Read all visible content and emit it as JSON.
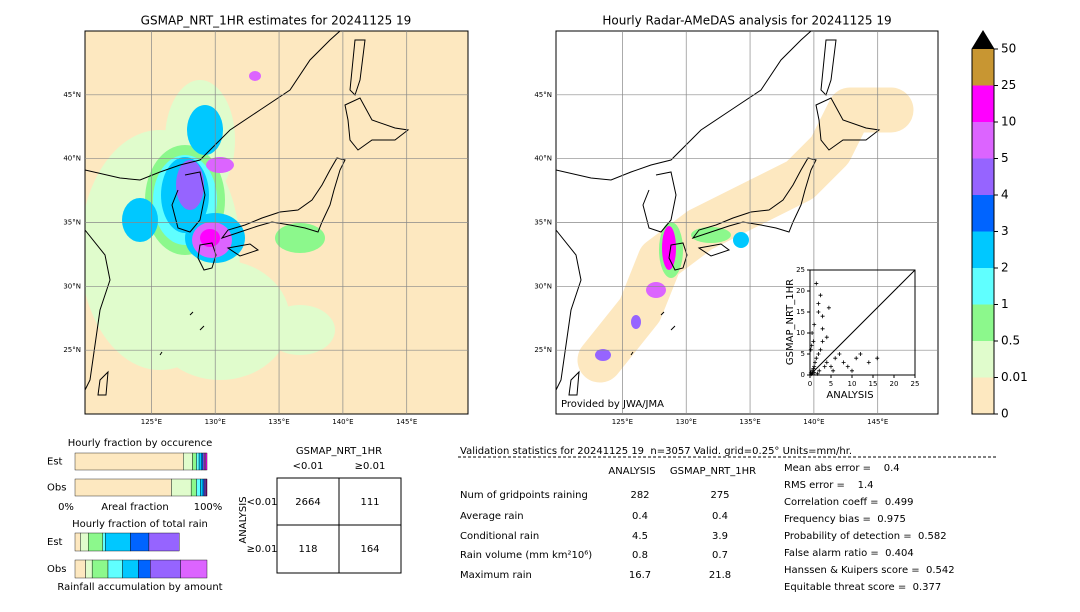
{
  "maps": [
    {
      "title": "GSMAP_NRT_1HR estimates for 20241125 19",
      "lonlim": [
        119.8,
        149.8
      ],
      "latlim": [
        20,
        50
      ],
      "lon_ticks": [
        {
          "value": 125,
          "label": "125°E"
        },
        {
          "value": 130,
          "label": "130°E"
        },
        {
          "value": 135,
          "label": "135°E"
        },
        {
          "value": 140,
          "label": "140°E"
        },
        {
          "value": 145,
          "label": "145°E"
        }
      ],
      "lat_ticks": [
        {
          "value": 25,
          "label": "25°N"
        },
        {
          "value": 30,
          "label": "30°N"
        },
        {
          "value": 35,
          "label": "35°N"
        },
        {
          "value": 40,
          "label": "40°N"
        },
        {
          "value": 45,
          "label": "45°N"
        }
      ]
    },
    {
      "title": "Hourly Radar-AMeDAS analysis for 20241125 19",
      "lonlim": [
        119.8,
        149.8
      ],
      "latlim": [
        20,
        50
      ],
      "lon_ticks": [
        {
          "value": 125,
          "label": "125°E"
        },
        {
          "value": 130,
          "label": "130°E"
        },
        {
          "value": 135,
          "label": "135°E"
        },
        {
          "value": 140,
          "label": "140°E"
        },
        {
          "value": 145,
          "label": "145°E"
        }
      ],
      "lat_ticks": [
        {
          "value": 25,
          "label": "25°N"
        },
        {
          "value": 30,
          "label": "30°N"
        },
        {
          "value": 35,
          "label": "35°N"
        },
        {
          "value": 40,
          "label": "40°N"
        },
        {
          "value": 45,
          "label": "45°N"
        }
      ],
      "credit": "Provided by JWA/JMA"
    }
  ],
  "colorbar": {
    "ticks": [
      0,
      0.01,
      0.5,
      1,
      2,
      3,
      4,
      5,
      10,
      25,
      50
    ],
    "colors": [
      "#fde8c0",
      "#e0fccc",
      "#8cf88c",
      "#60ffff",
      "#00c8ff",
      "#0064ff",
      "#9664ff",
      "#dc64ff",
      "#ff00ff",
      "#c89632"
    ]
  },
  "scatter": {
    "type": "scatter",
    "xlabel": "ANALYSIS",
    "ylabel": "GSMAP_NRT_1HR",
    "xlim": [
      0,
      25
    ],
    "ylim": [
      0,
      25
    ],
    "xticks": [
      0,
      5,
      10,
      15,
      20,
      25
    ],
    "yticks": [
      0,
      5,
      10,
      15,
      20,
      25
    ],
    "x": [
      0.2,
      0.5,
      0.8,
      1,
      1.2,
      1.5,
      2,
      2.5,
      3,
      0.3,
      0.6,
      1,
      1.8,
      2.2,
      3.5,
      4,
      5,
      5.5,
      6,
      7,
      8,
      9,
      10,
      11,
      12,
      14,
      16,
      0.5,
      1,
      2,
      3,
      4,
      1.5,
      2,
      0.2,
      0.4,
      0.8,
      3,
      4.5,
      2.5
    ],
    "y": [
      0.5,
      1,
      1.5,
      2,
      3,
      4,
      5,
      6,
      8,
      0.2,
      0.4,
      0.6,
      0.3,
      1,
      2,
      3,
      2,
      1,
      4,
      5,
      3,
      2,
      1,
      4,
      5,
      3,
      4,
      10,
      12,
      15,
      11,
      9,
      21.8,
      17,
      6,
      7,
      8,
      14,
      16,
      19
    ]
  },
  "occurrence": {
    "title": "Hourly fraction by occurence",
    "rows": [
      "Est",
      "Obs"
    ],
    "segments": [
      [
        0.82,
        0.07,
        0.03,
        0.02,
        0.02,
        0.01,
        0.01,
        0.01,
        0.01,
        0
      ],
      [
        0.73,
        0.15,
        0.04,
        0.03,
        0.02,
        0.01,
        0.01,
        0.005,
        0.005,
        0
      ]
    ],
    "axis_labels": [
      "0%",
      "Areal fraction",
      "100%"
    ]
  },
  "total": {
    "title": "Hourly fraction of total rain",
    "rows": [
      "Est",
      "Obs"
    ],
    "segments": [
      [
        0.04,
        0.06,
        0.11,
        0.02,
        0.19,
        0.14,
        0.23,
        0,
        0,
        0
      ],
      [
        0.08,
        0.05,
        0.12,
        0.11,
        0.12,
        0.09,
        0.23,
        0.2,
        0,
        0
      ]
    ],
    "footer": "Rainfall accumulation by amount"
  },
  "contingency": {
    "title": "GSMAP_NRT_1HR",
    "col_labels": [
      "<0.01",
      "≥0.01"
    ],
    "row_axis": "ANALYSIS",
    "row_labels": [
      "<0.01",
      "≥0.01"
    ],
    "cells": [
      [
        2664,
        111
      ],
      [
        118,
        164
      ]
    ]
  },
  "validation": {
    "header": "Validation statistics for 20241125 19  n=3057 Valid. grid=0.25° Units=mm/hr.",
    "columns": [
      "ANALYSIS",
      "GSMAP_NRT_1HR"
    ],
    "rows": [
      {
        "label": "Num of gridpoints raining",
        "values": [
          282,
          275
        ]
      },
      {
        "label": "Average rain",
        "values": [
          0.4,
          0.4
        ]
      },
      {
        "label": "Conditional rain",
        "values": [
          4.5,
          3.9
        ]
      },
      {
        "label": "Rain volume (mm km²10⁶)",
        "values": [
          0.8,
          0.7
        ]
      },
      {
        "label": "Maximum rain",
        "values": [
          16.7,
          21.8
        ]
      }
    ],
    "scores": [
      "Mean abs error =    0.4",
      "RMS error =    1.4",
      "Correlation coeff =  0.499",
      "Frequency bias =  0.975",
      "Probability of detection =  0.582",
      "False alarm ratio =  0.404",
      "Hanssen & Kuipers score =  0.542",
      "Equitable threat score =  0.377"
    ]
  }
}
